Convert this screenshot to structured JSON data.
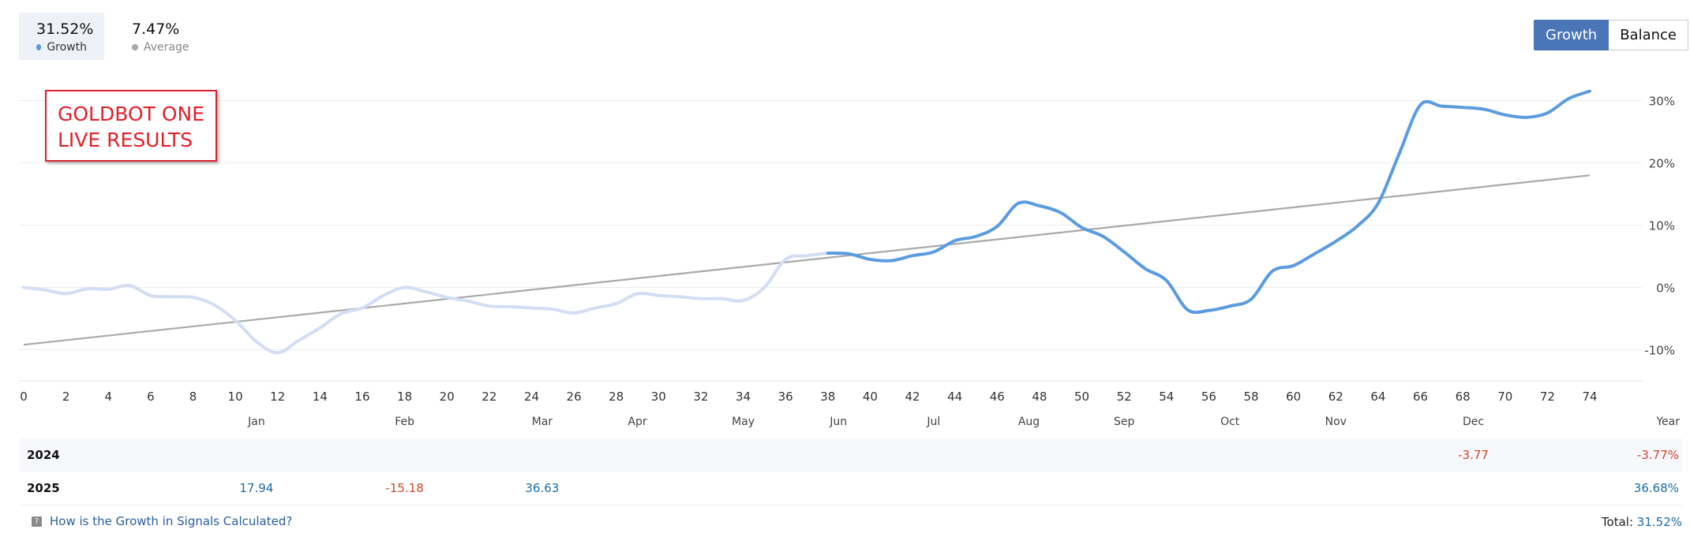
{
  "summary": {
    "growth": {
      "value": "31.52%",
      "label": "Growth",
      "color": "#5b9be0"
    },
    "average": {
      "value": "7.47%",
      "label": "Average",
      "color": "#a9a9a9"
    }
  },
  "toggle": {
    "growth_label": "Growth",
    "balance_label": "Balance"
  },
  "annotation": {
    "line1": "GOLDBOT ONE",
    "line2": "LIVE RESULTS"
  },
  "chart_data": {
    "type": "line",
    "x_range": [
      0,
      74
    ],
    "x_ticks": [
      0,
      2,
      4,
      6,
      8,
      10,
      12,
      14,
      16,
      18,
      20,
      22,
      24,
      26,
      28,
      30,
      32,
      34,
      36,
      38,
      40,
      42,
      44,
      46,
      48,
      50,
      52,
      54,
      56,
      58,
      60,
      62,
      64,
      66,
      68,
      70,
      72,
      74
    ],
    "y_range": [
      -15,
      35
    ],
    "y_ticks": [
      -10,
      0,
      10,
      20,
      30
    ],
    "y_tick_labels": [
      "-10%",
      "0%",
      "10%",
      "20%",
      "30%"
    ],
    "months": [
      "Jan",
      "Feb",
      "Mar",
      "Apr",
      "May",
      "Jun",
      "Jul",
      "Aug",
      "Sep",
      "Oct",
      "Nov",
      "Dec"
    ],
    "month_positions": [
      11,
      18,
      24.5,
      29,
      34,
      38.5,
      43,
      47.5,
      52,
      57,
      62,
      68.5
    ],
    "year_label": "Year",
    "series": [
      {
        "name": "Growth",
        "color": "#5b9be0",
        "faded_color": "#d3ddf3",
        "highlight_from_x": 38,
        "x": [
          0,
          1,
          2,
          3,
          4,
          5,
          6,
          7,
          8,
          9,
          10,
          11,
          12,
          13,
          14,
          15,
          16,
          17,
          18,
          19,
          20,
          21,
          22,
          23,
          24,
          25,
          26,
          27,
          28,
          29,
          30,
          31,
          32,
          33,
          34,
          35,
          36,
          37,
          38,
          39,
          40,
          41,
          42,
          43,
          44,
          45,
          46,
          47,
          48,
          49,
          50,
          51,
          52,
          53,
          54,
          55,
          56,
          57,
          58,
          59,
          60,
          61,
          62,
          63,
          64,
          65,
          66,
          67,
          68,
          69,
          70,
          71,
          72,
          73,
          74
        ],
        "y": [
          0,
          -0.4,
          -1,
          -0.2,
          -0.3,
          0.3,
          -1.3,
          -1.5,
          -1.6,
          -2.8,
          -5.3,
          -8.7,
          -10.5,
          -8.5,
          -6.5,
          -4.2,
          -3.3,
          -1.3,
          0,
          -0.7,
          -1.6,
          -2.2,
          -3,
          -3.1,
          -3.3,
          -3.5,
          -4.1,
          -3.3,
          -2.6,
          -1,
          -1.3,
          -1.5,
          -1.8,
          -1.8,
          -2.1,
          0,
          4.5,
          5.1,
          5.5,
          5.4,
          4.5,
          4.3,
          5.1,
          5.7,
          7.5,
          8.2,
          9.8,
          13.5,
          13.1,
          12,
          9.6,
          8.2,
          5.7,
          3,
          1.1,
          -3.6,
          -3.7,
          -3,
          -1.9,
          2.6,
          3.5,
          5.4,
          7.4,
          9.8,
          13.5,
          21.5,
          29.3,
          29.1,
          28.9,
          28.6,
          27.7,
          27.3,
          28,
          30.3,
          31.5
        ]
      },
      {
        "name": "Average",
        "color": "#a9a9a9",
        "x": [
          0,
          74
        ],
        "y": [
          -9.2,
          18
        ]
      }
    ],
    "table": {
      "rows": [
        {
          "year": "2024",
          "cells": [
            {
              "month": "Dec",
              "value": "-3.77",
              "sign": "neg"
            }
          ],
          "total": "-3.77%",
          "total_sign": "neg"
        },
        {
          "year": "2025",
          "cells": [
            {
              "month": "Jan",
              "value": "17.94",
              "sign": "pos"
            },
            {
              "month": "Feb",
              "value": "-15.18",
              "sign": "neg"
            },
            {
              "month": "Mar",
              "value": "36.63",
              "sign": "pos"
            }
          ],
          "total": "36.68%",
          "total_sign": "pos"
        }
      ]
    }
  },
  "footer": {
    "link": "How is the Growth in Signals Calculated?",
    "total_label": "Total:",
    "total_value": "31.52%"
  }
}
